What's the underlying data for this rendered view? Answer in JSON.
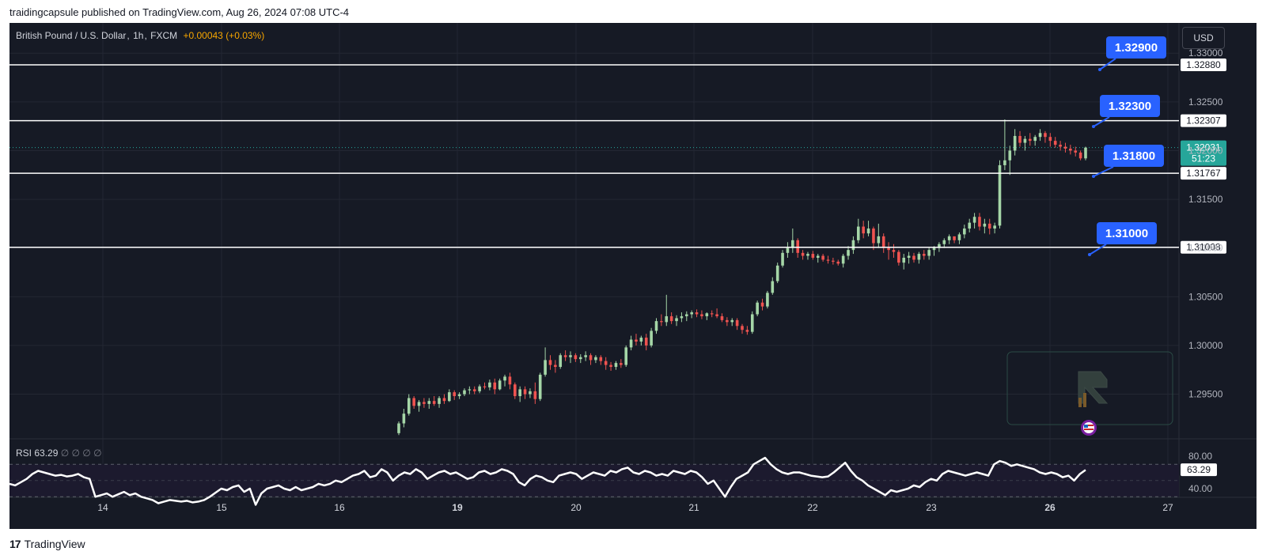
{
  "publish_line": "traidingcapsule published on TradingView.com, Aug 26, 2024 07:08 UTC-4",
  "legend": {
    "symbol": "British Pound / U.S. Dollar",
    "interval": "1h",
    "exchange": "FXCM",
    "change": "+0.00043 (+0.03%)"
  },
  "currency_button": "USD",
  "footer_brand": "TradingView",
  "footer_logo": "17",
  "rsi_legend": {
    "name": "RSI",
    "value": "63.29",
    "extra": "∅ ∅ ∅ ∅"
  },
  "chart_data": {
    "type": "candlestick",
    "price_axis": {
      "min": 1.2905,
      "max": 1.3331,
      "ticks": [
        "1.33000",
        "1.32500",
        "1.32000",
        "1.31500",
        "1.31000",
        "1.30500",
        "1.30000",
        "1.29500"
      ],
      "tick_values": [
        1.33,
        1.325,
        1.32,
        1.315,
        1.31,
        1.305,
        1.3,
        1.295
      ]
    },
    "time_axis": {
      "labels": [
        "14",
        "15",
        "16",
        "19",
        "20",
        "21",
        "22",
        "23",
        "26",
        "27"
      ],
      "bold": [
        "19",
        "26"
      ]
    },
    "horizontal_lines": [
      {
        "price": 1.3288,
        "label": "1.32880",
        "callout": "1.32900"
      },
      {
        "price": 1.32307,
        "label": "1.32307",
        "callout": "1.32300"
      },
      {
        "price": 1.31767,
        "label": "1.31767",
        "callout": "1.31800"
      },
      {
        "price": 1.31008,
        "label": "1.31008",
        "callout": "1.31000"
      }
    ],
    "last_price": {
      "value": 1.32031,
      "label": "1.32031",
      "countdown": "51:23",
      "color": "#26a69a"
    },
    "up_color": "#a5d6a7",
    "down_color": "#ef5350",
    "callout_color": "#2962ff",
    "candles": [
      [
        1.291,
        1.2922,
        1.2908,
        1.292
      ],
      [
        1.292,
        1.2935,
        1.2916,
        1.293
      ],
      [
        1.293,
        1.295,
        1.2928,
        1.2946
      ],
      [
        1.2946,
        1.2948,
        1.2935,
        1.2938
      ],
      [
        1.2938,
        1.2944,
        1.2932,
        1.2942
      ],
      [
        1.2942,
        1.2946,
        1.2936,
        1.294
      ],
      [
        1.294,
        1.2946,
        1.2935,
        1.2943
      ],
      [
        1.2943,
        1.2948,
        1.2938,
        1.294
      ],
      [
        1.294,
        1.2948,
        1.2936,
        1.2946
      ],
      [
        1.2946,
        1.295,
        1.294,
        1.2943
      ],
      [
        1.2943,
        1.2955,
        1.2942,
        1.2952
      ],
      [
        1.2952,
        1.2954,
        1.2944,
        1.2948
      ],
      [
        1.2948,
        1.2952,
        1.2945,
        1.295
      ],
      [
        1.295,
        1.2956,
        1.2948,
        1.2954
      ],
      [
        1.2954,
        1.2958,
        1.295,
        1.2955
      ],
      [
        1.2955,
        1.2958,
        1.295,
        1.2953
      ],
      [
        1.2953,
        1.296,
        1.2951,
        1.2958
      ],
      [
        1.2958,
        1.2962,
        1.2955,
        1.2957
      ],
      [
        1.2957,
        1.2965,
        1.2954,
        1.2962
      ],
      [
        1.2962,
        1.2966,
        1.295,
        1.2955
      ],
      [
        1.2955,
        1.2966,
        1.2954,
        1.2964
      ],
      [
        1.2964,
        1.297,
        1.2958,
        1.2968
      ],
      [
        1.2968,
        1.2972,
        1.2955,
        1.296
      ],
      [
        1.296,
        1.2962,
        1.2945,
        1.2948
      ],
      [
        1.2948,
        1.2958,
        1.2942,
        1.2955
      ],
      [
        1.2955,
        1.2958,
        1.2945,
        1.295
      ],
      [
        1.295,
        1.2956,
        1.2946,
        1.2953
      ],
      [
        1.2953,
        1.2962,
        1.294,
        1.2945
      ],
      [
        1.2945,
        1.2972,
        1.2943,
        1.297
      ],
      [
        1.297,
        1.2998,
        1.2968,
        1.2985
      ],
      [
        1.2985,
        1.299,
        1.2975,
        1.298
      ],
      [
        1.298,
        1.2985,
        1.2972,
        1.2978
      ],
      [
        1.2978,
        1.2992,
        1.2976,
        1.299
      ],
      [
        1.299,
        1.2995,
        1.2984,
        1.2988
      ],
      [
        1.2988,
        1.2994,
        1.2982,
        1.299
      ],
      [
        1.299,
        1.2992,
        1.2983,
        1.2986
      ],
      [
        1.2986,
        1.2991,
        1.2982,
        1.2988
      ],
      [
        1.2988,
        1.2994,
        1.2984,
        1.299
      ],
      [
        1.299,
        1.2992,
        1.298,
        1.2985
      ],
      [
        1.2985,
        1.299,
        1.2982,
        1.2988
      ],
      [
        1.2988,
        1.299,
        1.298,
        1.2984
      ],
      [
        1.2984,
        1.2988,
        1.2975,
        1.298
      ],
      [
        1.298,
        1.2983,
        1.2974,
        1.2978
      ],
      [
        1.2978,
        1.2984,
        1.2975,
        1.2982
      ],
      [
        1.2982,
        1.2986,
        1.2977,
        1.298
      ],
      [
        1.298,
        1.3,
        1.2978,
        1.2998
      ],
      [
        1.2998,
        1.301,
        1.2995,
        1.3006
      ],
      [
        1.3006,
        1.3012,
        1.3,
        1.3004
      ],
      [
        1.3004,
        1.301,
        1.3,
        1.3008
      ],
      [
        1.3008,
        1.3012,
        1.2995,
        1.3
      ],
      [
        1.3,
        1.3018,
        1.2998,
        1.3015
      ],
      [
        1.3015,
        1.3028,
        1.3012,
        1.3025
      ],
      [
        1.3025,
        1.3032,
        1.302,
        1.3024
      ],
      [
        1.3024,
        1.3052,
        1.302,
        1.303
      ],
      [
        1.303,
        1.3034,
        1.3022,
        1.3025
      ],
      [
        1.3025,
        1.3031,
        1.302,
        1.3028
      ],
      [
        1.3028,
        1.3034,
        1.3024,
        1.303
      ],
      [
        1.303,
        1.3035,
        1.3025,
        1.3032
      ],
      [
        1.3032,
        1.3036,
        1.3028,
        1.3034
      ],
      [
        1.3034,
        1.3037,
        1.3029,
        1.3032
      ],
      [
        1.3032,
        1.3036,
        1.3027,
        1.303
      ],
      [
        1.303,
        1.3034,
        1.3026,
        1.3033
      ],
      [
        1.3033,
        1.3036,
        1.3029,
        1.3032
      ],
      [
        1.3032,
        1.3038,
        1.3028,
        1.303
      ],
      [
        1.303,
        1.3033,
        1.3024,
        1.3026
      ],
      [
        1.3026,
        1.3029,
        1.302,
        1.3024
      ],
      [
        1.3024,
        1.3028,
        1.302,
        1.3026
      ],
      [
        1.3026,
        1.3028,
        1.3016,
        1.302
      ],
      [
        1.302,
        1.3022,
        1.3012,
        1.3016
      ],
      [
        1.3016,
        1.302,
        1.3011,
        1.3014
      ],
      [
        1.3014,
        1.3035,
        1.3012,
        1.3032
      ],
      [
        1.3032,
        1.3046,
        1.303,
        1.3044
      ],
      [
        1.3044,
        1.3048,
        1.3036,
        1.304
      ],
      [
        1.304,
        1.3056,
        1.3038,
        1.3054
      ],
      [
        1.3054,
        1.307,
        1.3052,
        1.3066
      ],
      [
        1.3066,
        1.3085,
        1.3064,
        1.3082
      ],
      [
        1.3082,
        1.3098,
        1.308,
        1.3095
      ],
      [
        1.3095,
        1.3106,
        1.309,
        1.31
      ],
      [
        1.31,
        1.312,
        1.3095,
        1.3108
      ],
      [
        1.3108,
        1.311,
        1.309,
        1.3095
      ],
      [
        1.3095,
        1.3098,
        1.3088,
        1.3092
      ],
      [
        1.3092,
        1.3096,
        1.3088,
        1.3094
      ],
      [
        1.3094,
        1.3097,
        1.3088,
        1.309
      ],
      [
        1.309,
        1.3094,
        1.3085,
        1.3092
      ],
      [
        1.3092,
        1.3094,
        1.3086,
        1.3088
      ],
      [
        1.3088,
        1.3092,
        1.3084,
        1.3087
      ],
      [
        1.3087,
        1.309,
        1.3083,
        1.3086
      ],
      [
        1.3086,
        1.3088,
        1.3082,
        1.3084
      ],
      [
        1.3084,
        1.3094,
        1.308,
        1.3092
      ],
      [
        1.3092,
        1.3102,
        1.3088,
        1.3098
      ],
      [
        1.3098,
        1.3112,
        1.3094,
        1.3108
      ],
      [
        1.3108,
        1.313,
        1.3105,
        1.3122
      ],
      [
        1.3122,
        1.3128,
        1.311,
        1.3115
      ],
      [
        1.3115,
        1.3128,
        1.3112,
        1.312
      ],
      [
        1.312,
        1.3122,
        1.3098,
        1.3105
      ],
      [
        1.3105,
        1.3125,
        1.31,
        1.3112
      ],
      [
        1.3112,
        1.3115,
        1.3095,
        1.31
      ],
      [
        1.31,
        1.3106,
        1.3088,
        1.3098
      ],
      [
        1.3098,
        1.3104,
        1.309,
        1.3096
      ],
      [
        1.3096,
        1.3098,
        1.3082,
        1.3085
      ],
      [
        1.3085,
        1.3094,
        1.3078,
        1.309
      ],
      [
        1.309,
        1.3096,
        1.3084,
        1.3092
      ],
      [
        1.3092,
        1.3095,
        1.3085,
        1.3088
      ],
      [
        1.3088,
        1.3096,
        1.3084,
        1.3094
      ],
      [
        1.3094,
        1.3098,
        1.3088,
        1.3092
      ],
      [
        1.3092,
        1.31,
        1.3088,
        1.3098
      ],
      [
        1.3098,
        1.3102,
        1.3092,
        1.31
      ],
      [
        1.31,
        1.3106,
        1.3096,
        1.3104
      ],
      [
        1.3104,
        1.311,
        1.31,
        1.3108
      ],
      [
        1.3108,
        1.3114,
        1.3104,
        1.3112
      ],
      [
        1.3112,
        1.3112,
        1.3105,
        1.3108
      ],
      [
        1.3108,
        1.3116,
        1.3104,
        1.3114
      ],
      [
        1.3114,
        1.3124,
        1.311,
        1.312
      ],
      [
        1.312,
        1.313,
        1.3116,
        1.3126
      ],
      [
        1.3126,
        1.3136,
        1.312,
        1.3132
      ],
      [
        1.3132,
        1.3136,
        1.3118,
        1.3122
      ],
      [
        1.3122,
        1.313,
        1.3115,
        1.3125
      ],
      [
        1.3125,
        1.313,
        1.3114,
        1.312
      ],
      [
        1.312,
        1.3126,
        1.3115,
        1.3123
      ],
      [
        1.3123,
        1.319,
        1.312,
        1.3185
      ],
      [
        1.3185,
        1.3232,
        1.318,
        1.319
      ],
      [
        1.319,
        1.3205,
        1.3175,
        1.32
      ],
      [
        1.32,
        1.3222,
        1.3195,
        1.3215
      ],
      [
        1.3215,
        1.322,
        1.3204,
        1.3208
      ],
      [
        1.3208,
        1.3215,
        1.32,
        1.3212
      ],
      [
        1.3212,
        1.3218,
        1.3205,
        1.321
      ],
      [
        1.321,
        1.3216,
        1.3205,
        1.3214
      ],
      [
        1.3214,
        1.3222,
        1.321,
        1.3218
      ],
      [
        1.3218,
        1.322,
        1.3208,
        1.3214
      ],
      [
        1.3214,
        1.3218,
        1.3204,
        1.321
      ],
      [
        1.321,
        1.3214,
        1.3203,
        1.3206
      ],
      [
        1.3206,
        1.321,
        1.32,
        1.3204
      ],
      [
        1.3204,
        1.3208,
        1.3198,
        1.3202
      ],
      [
        1.3202,
        1.3206,
        1.3196,
        1.32
      ],
      [
        1.32,
        1.3204,
        1.3194,
        1.3198
      ],
      [
        1.3198,
        1.32,
        1.319,
        1.3192
      ],
      [
        1.3192,
        1.3204,
        1.319,
        1.3203
      ]
    ],
    "rsi": {
      "value": 63.29,
      "axis_labels": [
        "80.00",
        "40.00"
      ],
      "band": [
        30,
        70
      ],
      "values": [
        46,
        44,
        48,
        52,
        58,
        62,
        60,
        58,
        56,
        57,
        55,
        56,
        58,
        54,
        52,
        30,
        32,
        34,
        30,
        33,
        36,
        32,
        34,
        30,
        28,
        26,
        22,
        24,
        26,
        25,
        24,
        25,
        23,
        24,
        26,
        30,
        35,
        40,
        38,
        42,
        44,
        36,
        40,
        20,
        34,
        40,
        42,
        44,
        40,
        38,
        42,
        38,
        40,
        42,
        46,
        44,
        46,
        50,
        48,
        52,
        56,
        58,
        62,
        54,
        56,
        64,
        60,
        50,
        56,
        60,
        58,
        64,
        60,
        52,
        56,
        60,
        62,
        58,
        60,
        56,
        52,
        54,
        60,
        62,
        58,
        60,
        64,
        62,
        58,
        48,
        44,
        52,
        56,
        54,
        50,
        48,
        56,
        58,
        60,
        58,
        52,
        56,
        60,
        58,
        56,
        62,
        60,
        64,
        66,
        60,
        58,
        62,
        60,
        56,
        58,
        56,
        62,
        60,
        58,
        62,
        60,
        54,
        46,
        50,
        40,
        30,
        42,
        52,
        56,
        60,
        70,
        74,
        78,
        70,
        64,
        60,
        58,
        60,
        60,
        58,
        56,
        55,
        54,
        55,
        60,
        66,
        72,
        62,
        54,
        50,
        44,
        40,
        36,
        32,
        38,
        36,
        38,
        40,
        44,
        42,
        48,
        52,
        50,
        58,
        62,
        60,
        58,
        56,
        58,
        60,
        58,
        56,
        70,
        74,
        72,
        68,
        70,
        68,
        66,
        64,
        60,
        58,
        60,
        58,
        54,
        56,
        50,
        58,
        63
      ]
    }
  }
}
